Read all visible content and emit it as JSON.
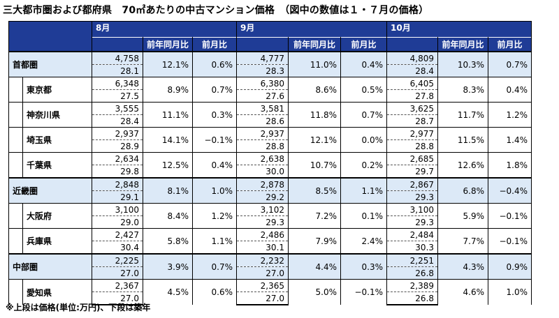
{
  "title": "三大都市圏および都府県　70㎡あたりの中古マンション価格　（図中の数値は１・７月の価格）",
  "note": "※上段は価格(単位:万円)、下段は築年",
  "months": [
    "8月",
    "9月",
    "10月"
  ],
  "subheaders": [
    "前年同月比",
    "前月比"
  ],
  "rows": [
    {
      "name": "首都圏",
      "group": true,
      "data": [
        [
          "4,758",
          "28.1",
          "12.1%",
          "0.6%"
        ],
        [
          "4,777",
          "28.3",
          "11.0%",
          "0.4%"
        ],
        [
          "4,809",
          "28.4",
          "10.3%",
          "0.7%"
        ]
      ]
    },
    {
      "name": "東京都",
      "group": false,
      "data": [
        [
          "6,348",
          "27.5",
          "8.9%",
          "0.7%"
        ],
        [
          "6,380",
          "27.6",
          "8.6%",
          "0.5%"
        ],
        [
          "6,405",
          "27.8",
          "8.3%",
          "0.4%"
        ]
      ]
    },
    {
      "name": "神奈川県",
      "group": false,
      "data": [
        [
          "3,555",
          "28.4",
          "11.1%",
          "0.3%"
        ],
        [
          "3,581",
          "28.6",
          "11.8%",
          "0.7%"
        ],
        [
          "3,625",
          "28.7",
          "11.7%",
          "1.2%"
        ]
      ]
    },
    {
      "name": "埼玉県",
      "group": false,
      "data": [
        [
          "2,937",
          "28.9",
          "14.1%",
          "−0.1%"
        ],
        [
          "2,937",
          "28.8",
          "12.1%",
          "0.0%"
        ],
        [
          "2,977",
          "28.8",
          "11.5%",
          "1.4%"
        ]
      ]
    },
    {
      "name": "千葉県",
      "group": false,
      "data": [
        [
          "2,634",
          "29.8",
          "12.5%",
          "0.4%"
        ],
        [
          "2,638",
          "30.0",
          "10.7%",
          "0.2%"
        ],
        [
          "2,685",
          "29.7",
          "12.6%",
          "1.8%"
        ]
      ]
    },
    {
      "name": "近畿圏",
      "group": true,
      "data": [
        [
          "2,848",
          "29.1",
          "8.1%",
          "1.0%"
        ],
        [
          "2,878",
          "29.2",
          "8.5%",
          "1.1%"
        ],
        [
          "2,867",
          "29.3",
          "6.8%",
          "−0.4%"
        ]
      ]
    },
    {
      "name": "大阪府",
      "group": false,
      "data": [
        [
          "3,100",
          "29.0",
          "8.4%",
          "1.2%"
        ],
        [
          "3,102",
          "29.3",
          "7.2%",
          "0.1%"
        ],
        [
          "3,100",
          "29.3",
          "5.9%",
          "−0.1%"
        ]
      ]
    },
    {
      "name": "兵庫県",
      "group": false,
      "data": [
        [
          "2,427",
          "30.4",
          "5.8%",
          "1.1%"
        ],
        [
          "2,486",
          "30.1",
          "7.9%",
          "2.4%"
        ],
        [
          "2,484",
          "30.3",
          "7.7%",
          "−0.1%"
        ]
      ]
    },
    {
      "name": "中部圏",
      "group": true,
      "data": [
        [
          "2,225",
          "27.0",
          "3.9%",
          "0.7%"
        ],
        [
          "2,232",
          "27.0",
          "4.4%",
          "0.3%"
        ],
        [
          "2,251",
          "26.8",
          "4.3%",
          "0.9%"
        ]
      ]
    },
    {
      "name": "愛知県",
      "group": false,
      "data": [
        [
          "2,367",
          "27.0",
          "4.5%",
          "0.6%"
        ],
        [
          "2,365",
          "27.0",
          "5.0%",
          "−0.1%"
        ],
        [
          "2,389",
          "26.8",
          "4.6%",
          "1.0%"
        ]
      ]
    }
  ]
}
